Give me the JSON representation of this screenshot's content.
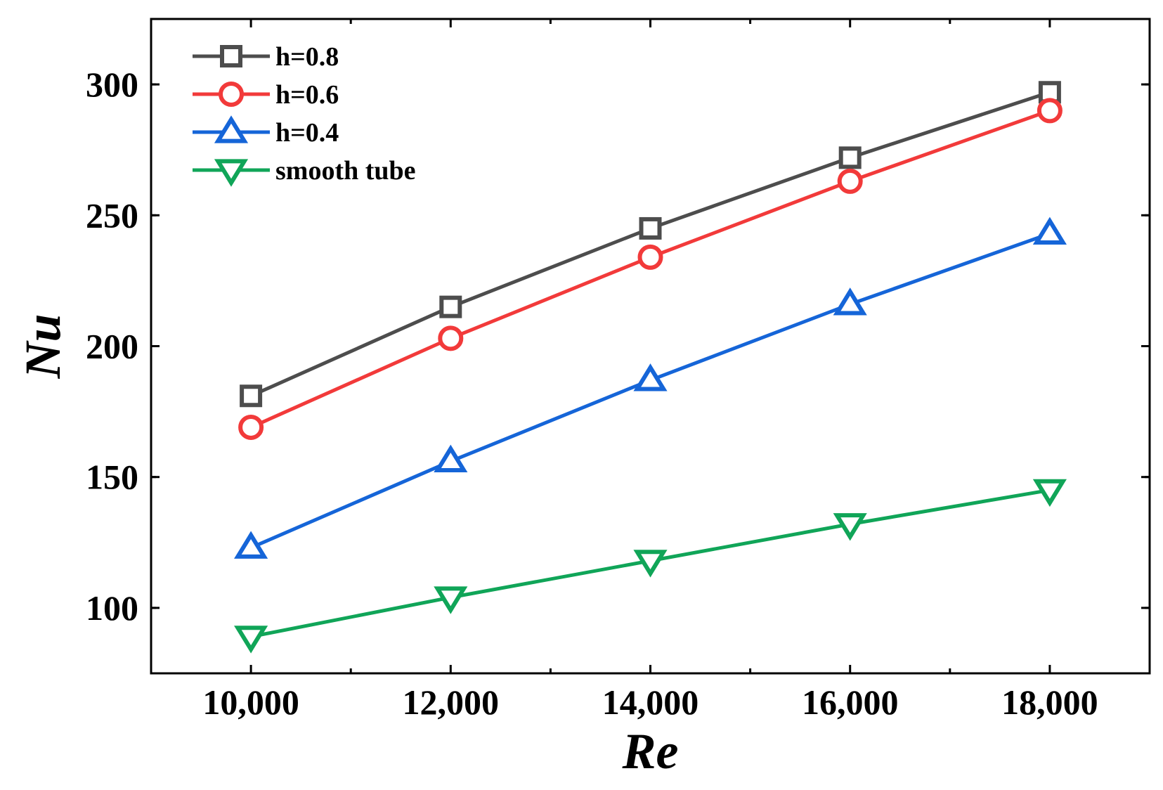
{
  "chart_data": {
    "type": "line",
    "title": "",
    "xlabel": "Re",
    "ylabel": "Nu",
    "x": [
      10000,
      12000,
      14000,
      16000,
      18000
    ],
    "x_tick_labels": [
      "10,000",
      "12,000",
      "14,000",
      "16,000",
      "18,000"
    ],
    "y_ticks": [
      100,
      150,
      200,
      250,
      300
    ],
    "y_tick_labels": [
      "100",
      "150",
      "200",
      "250",
      "300"
    ],
    "xlim": [
      9000,
      19000
    ],
    "ylim": [
      75,
      325
    ],
    "grid": false,
    "legend_position": "top-left",
    "series": [
      {
        "name": "h=0.8",
        "marker": "square",
        "color": "#4d4d4d",
        "values": [
          181,
          215,
          245,
          272,
          297
        ]
      },
      {
        "name": "h=0.6",
        "marker": "circle",
        "color": "#f23a3a",
        "values": [
          169,
          203,
          234,
          263,
          290
        ]
      },
      {
        "name": "h=0.4",
        "marker": "triangle-up",
        "color": "#1565d8",
        "values": [
          123,
          156,
          187,
          216,
          243
        ]
      },
      {
        "name": "smooth tube",
        "marker": "triangle-down",
        "color": "#10a558",
        "values": [
          89,
          104,
          118,
          132,
          145
        ]
      }
    ]
  }
}
